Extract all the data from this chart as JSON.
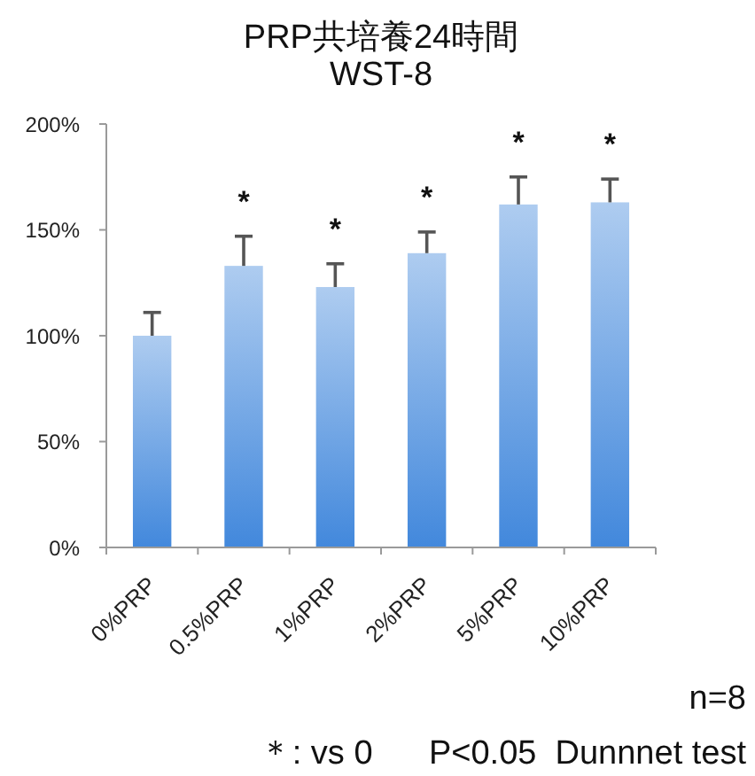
{
  "chart_data": {
    "type": "bar",
    "title": "PRP共培養24時間",
    "subtitle": "WST-8",
    "categories": [
      "0%PRP",
      "0.5%PRP",
      "1%PRP",
      "2%PRP",
      "5%PRP",
      "10%PRP"
    ],
    "values": [
      100,
      133,
      123,
      139,
      162,
      163
    ],
    "errors": [
      [
        100,
        111
      ],
      [
        133,
        147
      ],
      [
        123,
        134
      ],
      [
        139,
        149
      ],
      [
        162,
        175
      ],
      [
        163,
        174
      ]
    ],
    "color": "#78aae6",
    "ylim": [
      0,
      200
    ],
    "yticks": [
      {
        "value": 0,
        "label": "0%"
      },
      {
        "value": 50,
        "label": "50%"
      },
      {
        "value": 100,
        "label": "100%"
      },
      {
        "value": 150,
        "label": "150%"
      },
      {
        "value": 200,
        "label": "200%"
      }
    ],
    "annotations": [
      {
        "text": "*",
        "x": "0.5%PRP",
        "y": 133
      },
      {
        "text": "*",
        "x": "1%PRP",
        "y": 123
      },
      {
        "text": "*",
        "x": "2%PRP",
        "y": 139
      },
      {
        "text": "*",
        "x": "5%PRP",
        "y": 162
      },
      {
        "text": "*",
        "x": "10%PRP",
        "y": 163
      },
      "n=8",
      "＊: vs 0      P<0.05  Dunnnet test"
    ]
  }
}
